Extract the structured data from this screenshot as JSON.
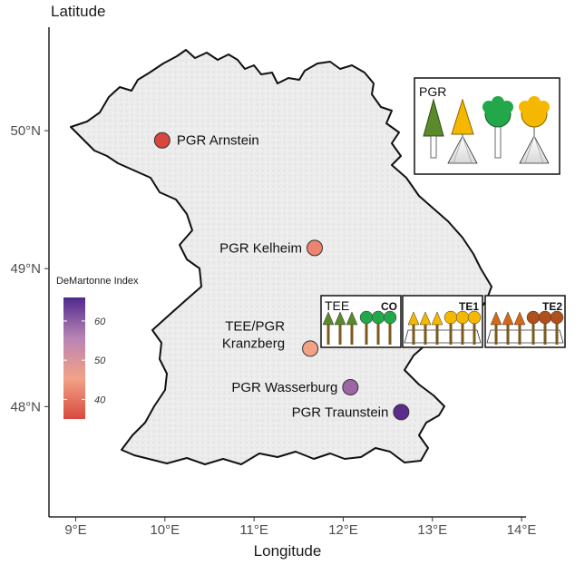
{
  "map": {
    "region": "Bavaria",
    "y_axis_title": "Latitude",
    "x_axis_title": "Longitude",
    "lat_ticks": [
      {
        "value": 48,
        "label": "48°N"
      },
      {
        "value": 49,
        "label": "49°N"
      },
      {
        "value": 50,
        "label": "50°N"
      }
    ],
    "lon_ticks": [
      {
        "value": 9,
        "label": "9°E"
      },
      {
        "value": 10,
        "label": "10°E"
      },
      {
        "value": 11,
        "label": "11°E"
      },
      {
        "value": 12,
        "label": "12°E"
      },
      {
        "value": 13,
        "label": "13°E"
      },
      {
        "value": 14,
        "label": "14°E"
      }
    ],
    "lon_range": [
      8.7,
      14.05
    ],
    "lat_range": [
      47.2,
      50.75
    ]
  },
  "sites": [
    {
      "name": "PGR Arnstein",
      "lon": 9.97,
      "lat": 49.93,
      "demartonne": 36,
      "color": "#d9463e"
    },
    {
      "name": "PGR Kelheim",
      "lon": 11.68,
      "lat": 49.15,
      "demartonne": 43,
      "color": "#ec8471"
    },
    {
      "name": "TEE/PGR Kranzberg",
      "label_lines": [
        "TEE/PGR",
        "Kranzberg"
      ],
      "lon": 11.63,
      "lat": 48.42,
      "demartonne": 46,
      "color": "#f3a287"
    },
    {
      "name": "PGR Wasserburg",
      "lon": 12.08,
      "lat": 48.14,
      "demartonne": 58,
      "color": "#9f66a3"
    },
    {
      "name": "PGR Traunstein",
      "lon": 12.65,
      "lat": 47.96,
      "demartonne": 64,
      "color": "#5c2a8c"
    }
  ],
  "legend": {
    "title": "DeMartonne Index",
    "min": 35,
    "max": 66,
    "ticks": [
      {
        "value": 40,
        "label": "40"
      },
      {
        "value": 50,
        "label": "50"
      },
      {
        "value": 60,
        "label": "60"
      }
    ],
    "colors": [
      "#d84a3f",
      "#f3a287",
      "#b984b5",
      "#4f2a8c"
    ]
  },
  "insets": {
    "pgr": {
      "title": "PGR"
    },
    "tee_co": {
      "title": "TEE",
      "tag": "CO"
    },
    "te1": {
      "tag": "TE1"
    },
    "te2": {
      "tag": "TE2"
    }
  },
  "tree_colors": {
    "spruce_green": "#5a8a2a",
    "spruce_yellow": "#f5b800",
    "beech_green": "#22a84a",
    "beech_yellow": "#f5b800",
    "te2_orange": "#d5691a",
    "te2_dark": "#b0501a"
  }
}
